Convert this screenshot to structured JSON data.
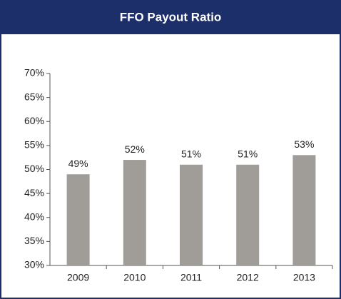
{
  "chart_data": {
    "type": "bar",
    "title": "FFO Payout Ratio",
    "categories": [
      "2009",
      "2010",
      "2011",
      "2012",
      "2013"
    ],
    "values": [
      49,
      52,
      51,
      51,
      53
    ],
    "value_labels": [
      "49%",
      "52%",
      "51%",
      "51%",
      "53%"
    ],
    "color": "#a09d98",
    "ylim": [
      30,
      70
    ],
    "yticks": [
      {
        "value": 30,
        "label": "30%"
      },
      {
        "value": 35,
        "label": "35%"
      },
      {
        "value": 40,
        "label": "40%"
      },
      {
        "value": 45,
        "label": "45%"
      },
      {
        "value": 50,
        "label": "50%"
      },
      {
        "value": 55,
        "label": "55%"
      },
      {
        "value": 60,
        "label": "60%"
      },
      {
        "value": 65,
        "label": "65%"
      },
      {
        "value": 70,
        "label": "70%"
      }
    ],
    "grid": false
  }
}
